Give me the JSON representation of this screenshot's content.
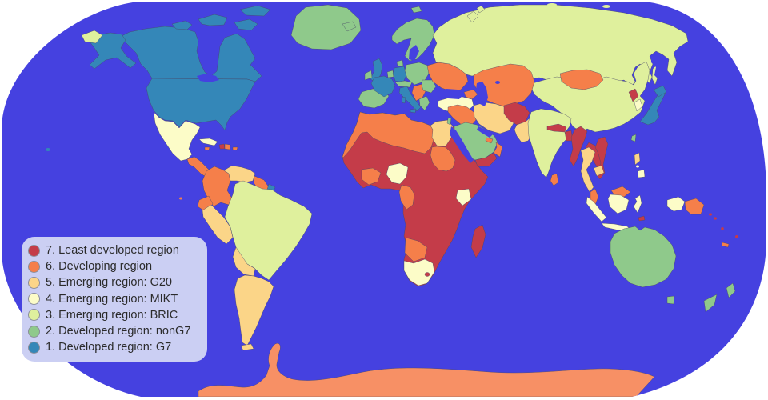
{
  "map": {
    "type": "world-choropleth",
    "projection": "robinson-like rounded outline",
    "ocean_color": "#4541e0",
    "background_color": "#ffffff",
    "country_border_color": "#474766",
    "antarctica_color": "#f79065",
    "classes": {
      "c1": {
        "label": "1. Developed region: G7",
        "color": "#3487b8"
      },
      "c2": {
        "label": "2. Developed region: nonG7",
        "color": "#8fc98b"
      },
      "c3": {
        "label": "3. Emerging region: BRIC",
        "color": "#dff09d"
      },
      "c4": {
        "label": "4. Emerging region: MIKT",
        "color": "#fcfcc8"
      },
      "c5": {
        "label": "5. Emerging region: G20",
        "color": "#fbd588"
      },
      "c6": {
        "label": "6. Developing region",
        "color": "#f57f4a"
      },
      "c7": {
        "label": "7. Least developed region",
        "color": "#c43c49"
      }
    },
    "examples_by_class": {
      "c1": [
        "United States",
        "Canada",
        "United Kingdom",
        "France",
        "Germany",
        "Italy",
        "Japan",
        "French Guiana"
      ],
      "c2": [
        "Greenland",
        "Iceland",
        "Ireland",
        "Norway",
        "Sweden",
        "Finland",
        "Denmark",
        "Spain",
        "Portugal",
        "Poland",
        "Austria",
        "Switzerland",
        "Romania",
        "Bulgaria",
        "Greece",
        "Israel",
        "Saudi Arabia",
        "Taiwan",
        "Australia",
        "New Zealand"
      ],
      "c3": [
        "Brazil",
        "Russia",
        "India",
        "China"
      ],
      "c4": [
        "Mexico",
        "Indonesia",
        "South Korea",
        "Turkey",
        "Cuba",
        "Nigeria",
        "Kenya",
        "South Africa",
        "Philippines (south)"
      ],
      "c5": [
        "Argentina",
        "Chile",
        "Peru",
        "Bolivia",
        "Paraguay",
        "Uruguay",
        "Venezuela",
        "Egypt",
        "Iran",
        "Pakistan",
        "Thailand",
        "Cambodia",
        "Philippines (Luzon)"
      ],
      "c6": [
        "Colombia",
        "Ecuador",
        "Guyana",
        "Suriname",
        "Central America",
        "Dominican Republic",
        "Jamaica",
        "Sri Lanka",
        "Morocco",
        "Algeria",
        "Tunisia",
        "Libya",
        "Sudan",
        "Ghana",
        "Cote d'Ivoire",
        "Cameroon",
        "Congo",
        "Namibia",
        "Botswana",
        "Ukraine",
        "Belarus",
        "Kazakhstan",
        "Uzbekistan",
        "Turkmenistan",
        "Mongolia",
        "Iraq",
        "Syria",
        "Oman",
        "Serbia",
        "Malaysia",
        "Papua New Guinea",
        "New Caledonia"
      ],
      "c7": [
        "Haiti",
        "Mauritania",
        "Mali",
        "Niger",
        "Chad",
        "Senegal",
        "Ethiopia",
        "Somalia",
        "DR Congo",
        "Angola",
        "Zambia",
        "Tanzania",
        "Mozambique",
        "Zimbabwe",
        "Madagascar",
        "Lesotho",
        "Yemen",
        "Afghanistan",
        "Nepal",
        "Bangladesh",
        "Myanmar",
        "Laos",
        "Vietnam",
        "North Korea",
        "Timor-Leste",
        "Solomon Islands",
        "Vanuatu",
        "Fiji"
      ]
    }
  },
  "legend": {
    "background_color": "#cbcff3",
    "text_color": "#2b2b2b",
    "items": [
      {
        "class": "c7",
        "label": "7. Least developed region"
      },
      {
        "class": "c6",
        "label": "6. Developing region"
      },
      {
        "class": "c5",
        "label": "5. Emerging region: G20"
      },
      {
        "class": "c4",
        "label": "4. Emerging region: MIKT"
      },
      {
        "class": "c3",
        "label": "3. Emerging region: BRIC"
      },
      {
        "class": "c2",
        "label": "2. Developed region: nonG7"
      },
      {
        "class": "c1",
        "label": "1. Developed region: G7"
      }
    ]
  }
}
